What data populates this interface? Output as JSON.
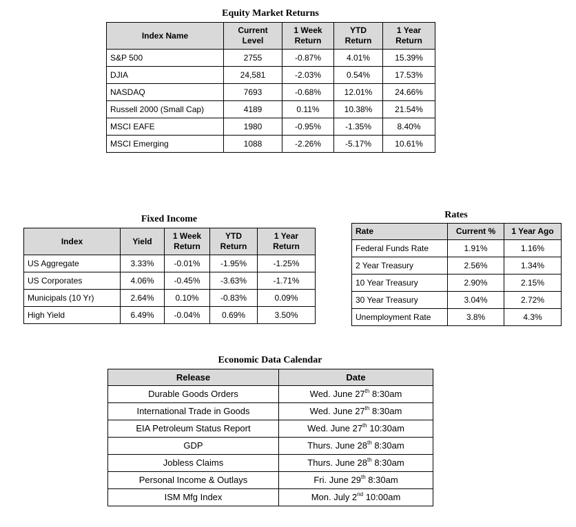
{
  "equity": {
    "title": "Equity Market Returns",
    "headers": {
      "name": "Index Name",
      "level_1": "Current",
      "level_2": "Level",
      "week_1": "1 Week",
      "week_2": "Return",
      "ytd_1": "YTD",
      "ytd_2": "Return",
      "year_1": "1 Year",
      "year_2": "Return"
    },
    "rows": [
      {
        "name": "S&P 500",
        "level": "2755",
        "week": "-0.87%",
        "ytd": "4.01%",
        "year": "15.39%"
      },
      {
        "name": "DJIA",
        "level": "24,581",
        "week": "-2.03%",
        "ytd": "0.54%",
        "year": "17.53%"
      },
      {
        "name": "NASDAQ",
        "level": "7693",
        "week": "-0.68%",
        "ytd": "12.01%",
        "year": "24.66%"
      },
      {
        "name": "Russell 2000 (Small Cap)",
        "level": "4189",
        "week": "0.11%",
        "ytd": "10.38%",
        "year": "21.54%"
      },
      {
        "name": "MSCI EAFE",
        "level": "1980",
        "week": "-0.95%",
        "ytd": "-1.35%",
        "year": "8.40%"
      },
      {
        "name": "MSCI Emerging",
        "level": "1088",
        "week": "-2.26%",
        "ytd": "-5.17%",
        "year": "10.61%"
      }
    ]
  },
  "fixed_income": {
    "title": "Fixed Income",
    "headers": {
      "index": "Index",
      "yield": "Yield",
      "week_1": "1 Week",
      "week_2": "Return",
      "ytd_1": "YTD",
      "ytd_2": "Return",
      "year_1": "1 Year",
      "year_2": "Return"
    },
    "rows": [
      {
        "name": "US Aggregate",
        "yield": "3.33%",
        "week": "-0.01%",
        "ytd": "-1.95%",
        "year": "-1.25%"
      },
      {
        "name": "US Corporates",
        "yield": "4.06%",
        "week": "-0.45%",
        "ytd": "-3.63%",
        "year": "-1.71%"
      },
      {
        "name": "Municipals (10 Yr)",
        "yield": "2.64%",
        "week": "0.10%",
        "ytd": "-0.83%",
        "year": "0.09%"
      },
      {
        "name": "High Yield",
        "yield": "6.49%",
        "week": "-0.04%",
        "ytd": "0.69%",
        "year": "3.50%"
      }
    ]
  },
  "rates": {
    "title": "Rates",
    "headers": {
      "rate": "Rate",
      "current": "Current %",
      "year_ago": "1 Year Ago"
    },
    "rows": [
      {
        "name": "Federal Funds Rate",
        "current": "1.91%",
        "year_ago": "1.16%"
      },
      {
        "name": "2 Year Treasury",
        "current": "2.56%",
        "year_ago": "1.34%"
      },
      {
        "name": "10 Year Treasury",
        "current": "2.90%",
        "year_ago": "2.15%"
      },
      {
        "name": "30 Year Treasury",
        "current": "3.04%",
        "year_ago": "2.72%"
      },
      {
        "name": "Unemployment Rate",
        "current": "3.8%",
        "year_ago": "4.3%"
      }
    ]
  },
  "calendar": {
    "title": "Economic Data Calendar",
    "headers": {
      "release": "Release",
      "date": "Date"
    },
    "rows": [
      {
        "release": "Durable Goods Orders",
        "date_pre": "Wed. June 27",
        "suffix": "th",
        "time": "8:30am"
      },
      {
        "release": "International Trade in Goods",
        "date_pre": "Wed. June 27",
        "suffix": "th",
        "time": "8:30am"
      },
      {
        "release": "EIA Petroleum Status Report",
        "date_pre": "Wed. June 27",
        "suffix": "th",
        "time": "10:30am"
      },
      {
        "release": "GDP",
        "date_pre": "Thurs. June 28",
        "suffix": "th",
        "time": "8:30am"
      },
      {
        "release": "Jobless Claims",
        "date_pre": "Thurs. June 28",
        "suffix": "th",
        "time": "8:30am"
      },
      {
        "release": "Personal Income & Outlays",
        "date_pre": "Fri. June 29",
        "suffix": "th",
        "time": "8:30am"
      },
      {
        "release": "ISM Mfg Index",
        "date_pre": "Mon. July 2",
        "suffix": "nd",
        "time": "10:00am"
      }
    ]
  }
}
